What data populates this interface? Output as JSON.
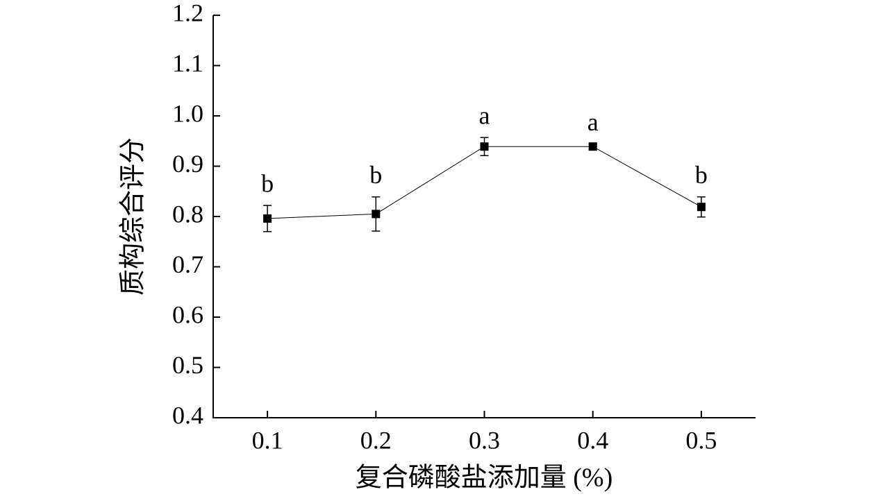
{
  "chart_data": {
    "type": "line",
    "x_label": "复合磷酸盐添加量 (%)",
    "y_label": "质构综合评分",
    "x": [
      0.1,
      0.2,
      0.3,
      0.4,
      0.5
    ],
    "values": [
      0.796,
      0.805,
      0.939,
      0.939,
      0.819
    ],
    "errors": [
      0.026,
      0.034,
      0.018,
      0.005,
      0.02
    ],
    "significance_labels": [
      "b",
      "b",
      "a",
      "a",
      "b"
    ],
    "color": "#000000",
    "xlim": [
      0.05,
      0.55
    ],
    "xticks": [
      0.1,
      0.2,
      0.3,
      0.4,
      0.5
    ],
    "ylim": [
      0.4,
      1.2
    ],
    "yticks": [
      0.4,
      0.5,
      0.6,
      0.7,
      0.8,
      0.9,
      {
        "value": 1,
        "label": "1.0"
      },
      1.1,
      1.2
    ]
  }
}
